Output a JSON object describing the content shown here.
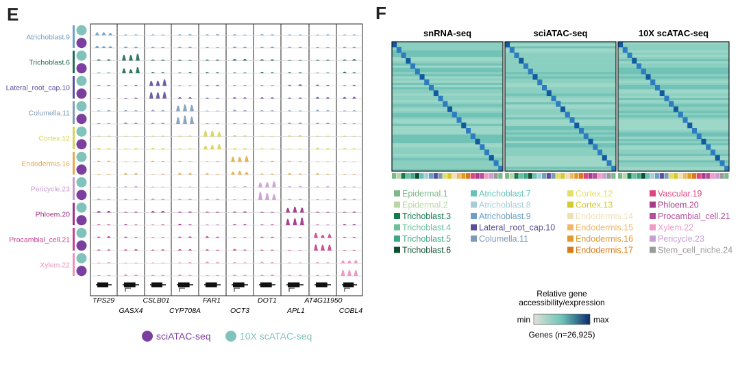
{
  "panel_e": {
    "letter": "E",
    "genes_row1": [
      "TPS29",
      "CSLB01",
      "FAR1",
      "DOT1",
      "AT4G11950"
    ],
    "genes_row2": [
      "GASX4",
      "CYP708A",
      "OCT3",
      "APL1",
      "COBL4"
    ],
    "legend": [
      {
        "label": "sciATAC-seq",
        "color": "#7b3fa0"
      },
      {
        "label": "10X scATAC-seq",
        "color": "#7fc3bc"
      }
    ]
  },
  "panel_f": {
    "letter": "F",
    "colorbar": {
      "title_line1": "Relative gene",
      "title_line2": "accessibility/expression",
      "min_label": "min",
      "max_label": "max",
      "genes_label": "Genes (n=26,925)",
      "colors": [
        "#e0e0d8",
        "#6cc4b8",
        "#0c2d6e"
      ]
    }
  },
  "chart_data": [
    {
      "type": "area",
      "description_role": "genome browser tracks",
      "tracks": [
        {
          "name": "Atrichoblast.9",
          "color": "#6f9fc4",
          "peaks": [
            [
              0,
              0.35
            ],
            [
              0,
              0.25
            ]
          ]
        },
        {
          "name": "Trichoblast.6",
          "color": "#1d6b4f",
          "peaks": [
            [
              1,
              0.7
            ],
            [
              1,
              0.6
            ]
          ]
        },
        {
          "name": "Lateral_root_cap.10",
          "color": "#5b4f9a",
          "peaks": [
            [
              2,
              0.7
            ],
            [
              2,
              0.8
            ]
          ]
        },
        {
          "name": "Columella.11",
          "color": "#7e9bb8",
          "peaks": [
            [
              3,
              0.7
            ],
            [
              3,
              0.85
            ]
          ]
        },
        {
          "name": "Cortex.12",
          "color": "#d8d356",
          "peaks": [
            [
              4,
              0.6
            ],
            [
              4,
              0.55
            ]
          ]
        },
        {
          "name": "Endodermis.16",
          "color": "#e8a849",
          "peaks": [
            [
              5,
              0.7
            ],
            [
              5,
              0.4
            ]
          ]
        },
        {
          "name": "Pericycle.23",
          "color": "#c79bd1",
          "peaks": [
            [
              6,
              0.6
            ],
            [
              6,
              0.9
            ]
          ]
        },
        {
          "name": "Phloem.20",
          "color": "#9c2f86",
          "peaks": [
            [
              7,
              0.7
            ],
            [
              7,
              0.95
            ]
          ]
        },
        {
          "name": "Procambial_cell.21",
          "color": "#c5408f",
          "peaks": [
            [
              8,
              0.5
            ],
            [
              8,
              0.85
            ]
          ]
        },
        {
          "name": "Xylem.22",
          "color": "#ec8fba",
          "peaks": [
            [
              9,
              0.3
            ],
            [
              9,
              0.6
            ]
          ]
        }
      ]
    },
    {
      "type": "heatmap",
      "panels": [
        "snRNA-seq",
        "sciATAC-seq",
        "10X scATAC-seq"
      ],
      "n_clusters": 24,
      "colorscale": [
        "#e0e0d8",
        "#6cc4b8",
        "#0c2d6e"
      ],
      "cluster_colors": [
        "#7cb888",
        "#b9d7a6",
        "#137a52",
        "#6dbf9e",
        "#3aa986",
        "#0f4f33",
        "#67c2b7",
        "#a8cdd6",
        "#6f9fc4",
        "#5b4f9a",
        "#7e9bb8",
        "#e4de68",
        "#d4c92d",
        "#f1dfb8",
        "#f0b86a",
        "#e39a2d",
        "#d97a1a",
        "#e0447e",
        "#a63d8a",
        "#b44e9a",
        "#f19cc4",
        "#c7a0d3",
        "#9a9a9a"
      ],
      "legend": [
        {
          "label": "Epidermal.1",
          "color": "#7cb888"
        },
        {
          "label": "Epidermal.2",
          "color": "#b9d7a6"
        },
        {
          "label": "Trichoblast.3",
          "color": "#137a52"
        },
        {
          "label": "Trichoblast.4",
          "color": "#6dbf9e"
        },
        {
          "label": "Trichoblast.5",
          "color": "#3aa986"
        },
        {
          "label": "Trichoblast.6",
          "color": "#0f4f33"
        },
        {
          "label": "Atrichoblast.7",
          "color": "#67c2b7"
        },
        {
          "label": "Atrichoblast.8",
          "color": "#a8cdd6"
        },
        {
          "label": "Atrichoblast.9",
          "color": "#6f9fc4"
        },
        {
          "label": "Lateral_root_cap.10",
          "color": "#5b4f9a"
        },
        {
          "label": "Columella.11",
          "color": "#7e9bb8"
        },
        {
          "label": "Cortex.12",
          "color": "#e4de68"
        },
        {
          "label": "Cortex.13",
          "color": "#d4c92d"
        },
        {
          "label": "Endodermis.14",
          "color": "#f1dfb8"
        },
        {
          "label": "Endodermis.15",
          "color": "#f0b86a"
        },
        {
          "label": "Endodermis.16",
          "color": "#e39a2d"
        },
        {
          "label": "Endodermis.17",
          "color": "#d97a1a"
        },
        {
          "label": "Vascular.19",
          "color": "#e0447e"
        },
        {
          "label": "Phloem.20",
          "color": "#a63d8a"
        },
        {
          "label": "Procambial_cell.21",
          "color": "#b44e9a"
        },
        {
          "label": "Xylem.22",
          "color": "#f19cc4"
        },
        {
          "label": "Pericycle.23",
          "color": "#c7a0d3"
        },
        {
          "label": "Stem_cell_niche.24",
          "color": "#9a9a9a"
        }
      ]
    }
  ]
}
